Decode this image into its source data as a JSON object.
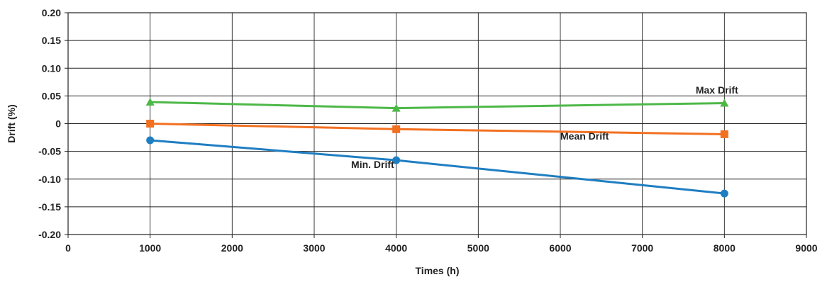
{
  "chart_data": {
    "type": "line",
    "title": "",
    "xlabel": "Times (h)",
    "ylabel": "Drift (%)",
    "xlim": [
      0,
      9000
    ],
    "ylim": [
      -0.2,
      0.2
    ],
    "x_ticks": [
      0,
      1000,
      2000,
      3000,
      4000,
      5000,
      6000,
      7000,
      8000,
      9000
    ],
    "x_tick_labels": [
      "0",
      "1000",
      "2000",
      "3000",
      "4000",
      "5000",
      "6000",
      "7000",
      "8000",
      "9000"
    ],
    "y_ticks": [
      0.2,
      0.15,
      0.1,
      0.05,
      0,
      -0.05,
      -0.1,
      -0.15,
      -0.2
    ],
    "y_tick_labels": [
      "0.20",
      "0.15",
      "0.10",
      "0.05",
      "0",
      "-0.05",
      "-0.10",
      "-0.15",
      "-0.20"
    ],
    "grid": true,
    "x": [
      1000,
      4000,
      8000
    ],
    "series": [
      {
        "name": "Max Drift",
        "values": [
          0.039,
          0.028,
          0.037
        ],
        "color": "#4db848",
        "marker": "triangle"
      },
      {
        "name": "Mean Drift",
        "values": [
          0.0,
          -0.01,
          -0.019
        ],
        "color": "#f37021",
        "marker": "square"
      },
      {
        "name": "Min. Drift",
        "values": [
          -0.03,
          -0.066,
          -0.126
        ],
        "color": "#1f7ec2",
        "marker": "circle"
      }
    ],
    "annotation_anchors": [
      {
        "text": "Max Drift",
        "x": 7650,
        "y": 0.054
      },
      {
        "text": "Mean Drift",
        "x": 6000,
        "y": -0.029
      },
      {
        "text": "Min. Drift",
        "x": 3450,
        "y": -0.08
      }
    ]
  }
}
